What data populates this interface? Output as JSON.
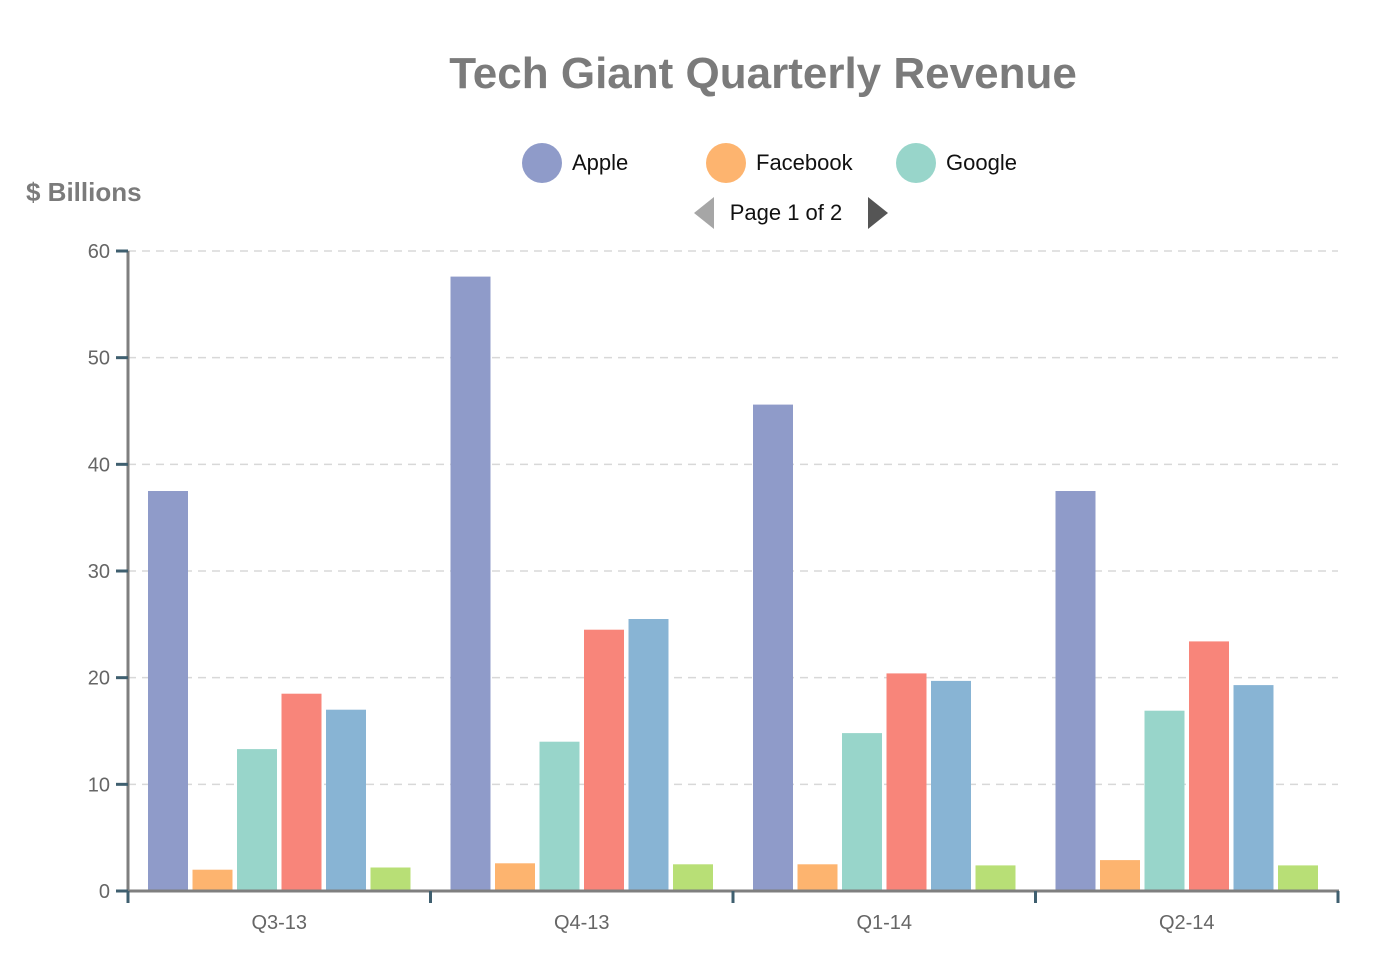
{
  "chart_data": {
    "type": "bar",
    "title": "Tech Giant Quarterly Revenue",
    "ylabel": "$ Billions",
    "xlabel": "",
    "ylim": [
      0,
      60
    ],
    "yticks": [
      0,
      10,
      20,
      30,
      40,
      50,
      60
    ],
    "grid": true,
    "legend_position": "top-center",
    "categories": [
      "Q3-13",
      "Q4-13",
      "Q1-14",
      "Q2-14"
    ],
    "series": [
      {
        "name": "Apple",
        "color": "#8f9bc9",
        "values": [
          37.5,
          57.6,
          45.6,
          37.5
        ]
      },
      {
        "name": "Facebook",
        "color": "#fdb46f",
        "values": [
          2.0,
          2.6,
          2.5,
          2.9
        ]
      },
      {
        "name": "Google",
        "color": "#98d5ca",
        "values": [
          13.3,
          14.0,
          14.8,
          16.9
        ]
      },
      {
        "color": "#f8857a",
        "values": [
          18.5,
          24.5,
          20.4,
          23.4
        ]
      },
      {
        "color": "#88b4d4",
        "values": [
          17.0,
          25.5,
          19.7,
          19.3
        ]
      },
      {
        "color": "#b8df76",
        "values": [
          2.2,
          2.5,
          2.4,
          2.4
        ]
      }
    ]
  },
  "pager": {
    "label": "Page 1 of 2",
    "current": 1,
    "total": 2,
    "prev_icon": "triangle-left-icon",
    "next_icon": "triangle-right-icon"
  }
}
